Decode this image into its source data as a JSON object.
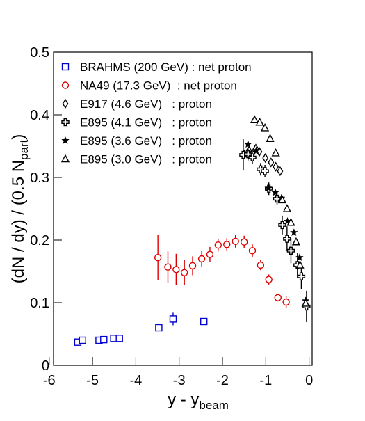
{
  "chart_data": {
    "type": "scatter",
    "x_label": {
      "main": "y - y",
      "sub": "beam"
    },
    "y_label": {
      "main": "(dN / dy) / (0.5 N",
      "sub": "part",
      "end": ")"
    },
    "xlim": [
      -5.9,
      0.07
    ],
    "ylim": [
      0,
      0.5
    ],
    "xticks": [
      -6,
      -5,
      -4,
      -3,
      -2,
      -1,
      0
    ],
    "yticks": [
      0,
      0.1,
      0.2,
      0.3,
      0.4,
      0.5
    ],
    "legend": "top-left",
    "series": [
      {
        "name": "BRAHMS (200 GeV) : net proton",
        "color": "#0000cc",
        "marker": "square",
        "x": [
          -5.34,
          -5.23,
          -4.85,
          -4.74,
          -4.51,
          -4.38,
          -3.47,
          -3.14,
          -2.43
        ],
        "values": [
          0.037,
          0.04,
          0.04,
          0.041,
          0.043,
          0.043,
          0.06,
          0.074,
          0.07
        ],
        "errors": [
          0.003,
          0.003,
          0.003,
          0.003,
          0.003,
          0.003,
          0.004,
          0.01,
          0.004
        ]
      },
      {
        "name": "NA49 (17.3 GeV)  : net proton",
        "color": "#dd0000",
        "marker": "circle",
        "x": [
          -3.49,
          -3.26,
          -3.07,
          -2.88,
          -2.69,
          -2.48,
          -2.29,
          -2.1,
          -1.9,
          -1.7,
          -1.5,
          -1.31,
          -1.12,
          -0.93,
          -0.72,
          -0.53
        ],
        "values": [
          0.172,
          0.157,
          0.153,
          0.148,
          0.159,
          0.17,
          0.177,
          0.192,
          0.193,
          0.198,
          0.197,
          0.183,
          0.16,
          0.137,
          0.108,
          0.101
        ],
        "errors": [
          0.036,
          0.025,
          0.025,
          0.02,
          0.015,
          0.013,
          0.012,
          0.01,
          0.01,
          0.01,
          0.01,
          0.01,
          0.008,
          0.008,
          0.006,
          0.01
        ]
      },
      {
        "name": "E917 (4.6 GeV)   : proton",
        "color": "#000000",
        "marker": "diamond",
        "x": [
          -1.49,
          -1.39,
          -1.31,
          -1.23,
          -1.15,
          -1.01,
          -0.88,
          -0.77,
          -0.67
        ],
        "values": [
          0.337,
          0.343,
          0.338,
          0.346,
          0.341,
          0.331,
          0.324,
          0.317,
          0.31
        ]
      },
      {
        "name": "E895 (4.1 GeV)   : proton",
        "color": "#000000",
        "marker": "cross",
        "x": [
          -1.52,
          -1.41,
          -1.31,
          -1.12,
          -1.02,
          -0.93,
          -0.74,
          -0.62,
          -0.51,
          -0.42,
          -0.27,
          -0.18,
          -0.06
        ],
        "values": [
          0.336,
          0.337,
          0.332,
          0.313,
          0.31,
          0.282,
          0.266,
          0.224,
          0.202,
          0.183,
          0.16,
          0.142,
          0.094
        ],
        "errors": [
          0.025,
          0.01,
          0.01,
          0.01,
          0.01,
          0.01,
          0.01,
          0.015,
          0.02,
          0.02,
          0.02,
          0.02,
          0.025
        ]
      },
      {
        "name": "E895 (3.6 GeV)   : proton",
        "color": "#000000",
        "marker": "star",
        "x": [
          -1.41,
          -1.22,
          -0.94,
          -0.78,
          -0.64,
          -0.5,
          -0.35,
          -0.22,
          -0.08
        ],
        "values": [
          0.353,
          0.343,
          0.283,
          0.276,
          0.267,
          0.23,
          0.212,
          0.172,
          0.103
        ]
      },
      {
        "name": "E895 (3.0 GeV)   : proton",
        "color": "#000000",
        "marker": "triangle",
        "x": [
          -1.26,
          -1.14,
          -1.02,
          -0.9,
          -0.77,
          -0.62,
          -0.51,
          -0.42,
          -0.3,
          -0.21,
          -0.08
        ],
        "values": [
          0.392,
          0.388,
          0.379,
          0.362,
          0.339,
          0.264,
          0.25,
          0.228,
          0.197,
          0.16,
          0.099
        ]
      }
    ]
  }
}
